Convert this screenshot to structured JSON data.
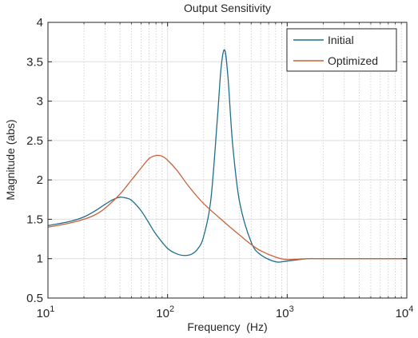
{
  "chart_data": {
    "type": "line",
    "title": "Output Sensitivity",
    "xlabel": "Frequency  (Hz)",
    "ylabel": "Magnitude (abs)",
    "xscale": "log",
    "xlim": [
      10,
      10000
    ],
    "ylim": [
      0.5,
      4
    ],
    "x_tick_labels": [
      {
        "base": "10",
        "exp": "1"
      },
      {
        "base": "10",
        "exp": "2"
      },
      {
        "base": "10",
        "exp": "3"
      },
      {
        "base": "10",
        "exp": "4"
      }
    ],
    "y_tick_labels": [
      "0.5",
      "1",
      "1.5",
      "2",
      "2.5",
      "3",
      "3.5",
      "4"
    ],
    "grid": true,
    "legend_position": "top-right",
    "series": [
      {
        "name": "Initial",
        "color": "#1f6f8b",
        "x": [
          10,
          15,
          20,
          25,
          30,
          35,
          40,
          45,
          50,
          60,
          70,
          80,
          100,
          120,
          140,
          160,
          180,
          200,
          230,
          260,
          280,
          300,
          320,
          350,
          400,
          500,
          600,
          800,
          1000,
          1500,
          2000,
          10000
        ],
        "y": [
          1.42,
          1.47,
          1.53,
          1.61,
          1.69,
          1.75,
          1.78,
          1.77,
          1.74,
          1.61,
          1.45,
          1.31,
          1.13,
          1.06,
          1.04,
          1.06,
          1.13,
          1.28,
          1.75,
          2.75,
          3.42,
          3.65,
          3.3,
          2.45,
          1.72,
          1.21,
          1.05,
          0.96,
          0.97,
          1.0,
          1.0,
          1.0
        ]
      },
      {
        "name": "Optimized",
        "color": "#c8633b",
        "x": [
          10,
          15,
          20,
          25,
          30,
          40,
          50,
          60,
          70,
          80,
          90,
          100,
          120,
          150,
          200,
          300,
          400,
          500,
          600,
          800,
          1000,
          1500,
          2000,
          10000
        ],
        "y": [
          1.4,
          1.45,
          1.5,
          1.56,
          1.64,
          1.82,
          2.0,
          2.15,
          2.27,
          2.31,
          2.3,
          2.25,
          2.12,
          1.92,
          1.7,
          1.46,
          1.3,
          1.18,
          1.1,
          1.02,
          0.99,
          1.0,
          1.0,
          1.0
        ]
      }
    ]
  }
}
